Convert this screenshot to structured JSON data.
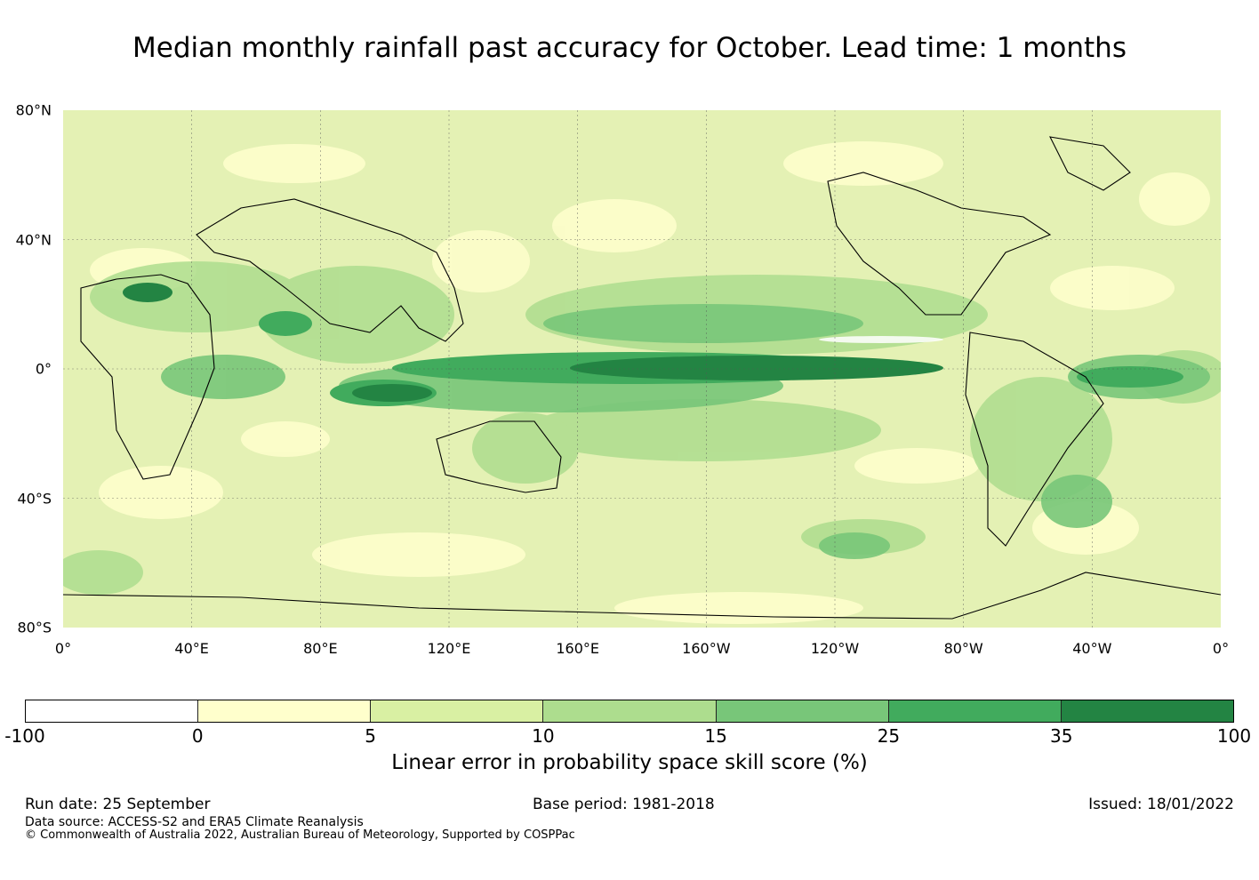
{
  "title": "Median monthly rainfall past accuracy for October. Lead time: 1 months",
  "map": {
    "lat_labels": [
      "80°N",
      "40°N",
      "0°",
      "40°S",
      "80°S"
    ],
    "lon_labels": [
      "0°",
      "40°E",
      "80°E",
      "120°E",
      "160°E",
      "160°W",
      "120°W",
      "80°W",
      "40°W",
      "0°"
    ],
    "lat_values": [
      80,
      40,
      0,
      -40,
      -80
    ],
    "lon_values": [
      0,
      40,
      80,
      120,
      160,
      200,
      240,
      280,
      320,
      360
    ],
    "lon_range": [
      0,
      360
    ],
    "lat_range": [
      -80,
      80
    ]
  },
  "colorbar": {
    "ticks": [
      "-100",
      "0",
      "5",
      "10",
      "15",
      "25",
      "35",
      "100"
    ],
    "colors": [
      "#ffffff",
      "#ffffcc",
      "#d9f0a3",
      "#addd8e",
      "#78c679",
      "#41ab5d",
      "#238443"
    ],
    "label": "Linear error in probability space skill score (%)"
  },
  "footer": {
    "run_date": "Run date: 25 September",
    "base_period": "Base period: 1981-2018",
    "issued": "Issued: 18/01/2022",
    "data_source": "Data source: ACCESS-S2 and ERA5 Climate Reanalysis",
    "copyright": "© Commonwealth of Australia 2022, Australian Bureau of Meteorology, Supported by COSPPac"
  }
}
